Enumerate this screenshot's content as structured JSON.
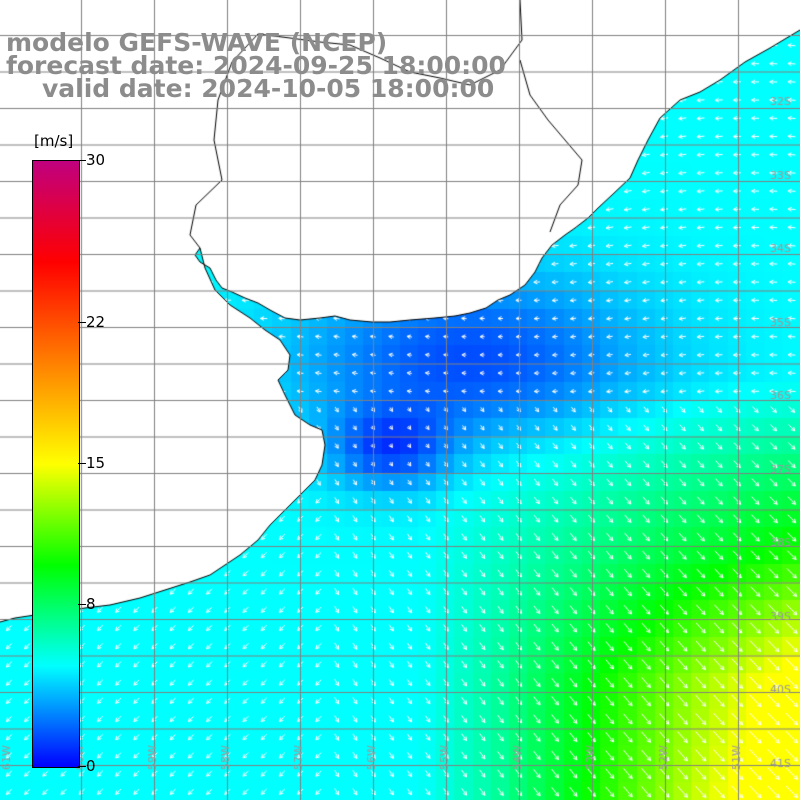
{
  "title": {
    "line1": "modelo GEFS-WAVE (NCEP)",
    "line2": "forecast date: 2024-09-25 18:00:00",
    "line3": "valid date: 2024-10-05 18:00:00"
  },
  "colorbar": {
    "unit": "[m/s]",
    "min": 0,
    "max": 30,
    "labels": [
      "30",
      "22",
      "15",
      "8",
      "0"
    ],
    "label_values": [
      30,
      22,
      15,
      8,
      0
    ],
    "colors": [
      "#0000ff",
      "#00ffff",
      "#00ff00",
      "#ffff00",
      "#ff8000",
      "#ff0000",
      "#c0007f"
    ]
  },
  "map": {
    "lon_labels": [
      "61W",
      "60W",
      "59W",
      "58W",
      "57W",
      "56W",
      "55W",
      "54W",
      "53W",
      "52W",
      "51W"
    ],
    "lat_labels": [
      "32S",
      "33S",
      "34S",
      "35S",
      "36S",
      "37S",
      "38S",
      "39S",
      "40S",
      "41S"
    ],
    "field": "wind speed and direction",
    "land_color": "#ffffff",
    "grid_color": "#808080"
  }
}
